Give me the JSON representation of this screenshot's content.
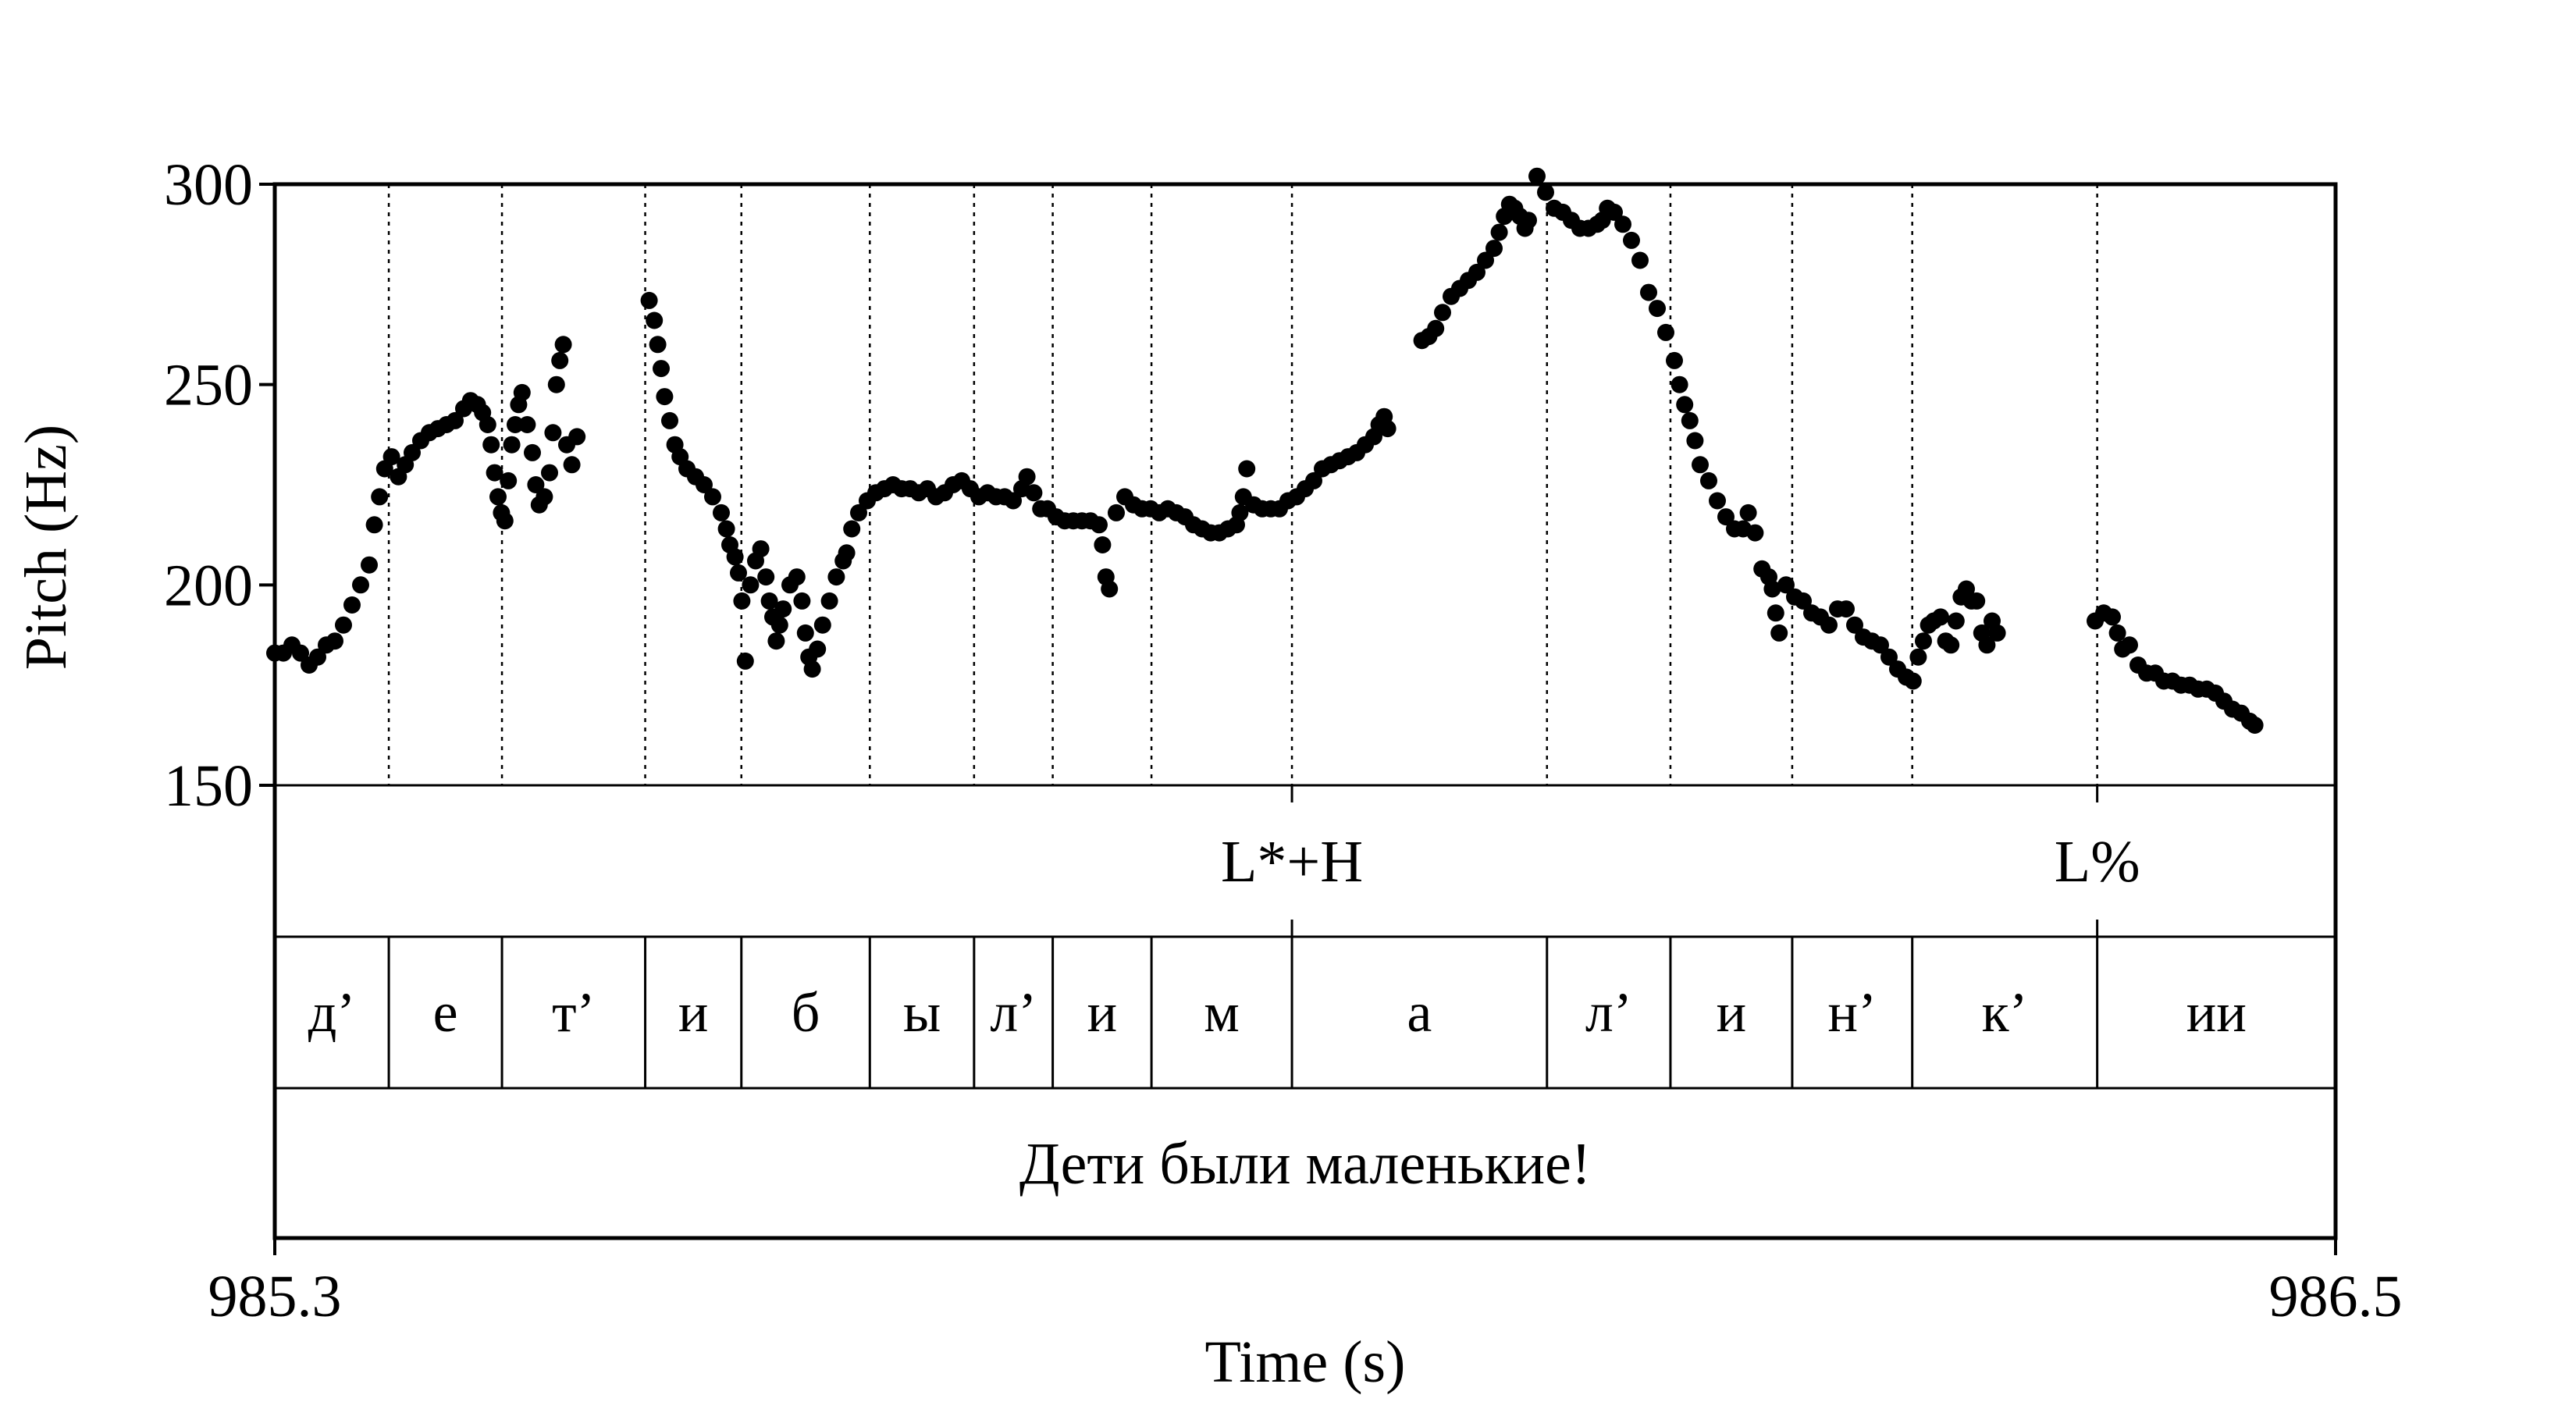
{
  "chart_data": {
    "type": "scatter",
    "xlabel": "Time (s)",
    "ylabel": "Pitch (Hz)",
    "xlim": [
      985.3,
      986.5
    ],
    "ylim": [
      150,
      300
    ],
    "x_tick_labels": [
      "985.3",
      "986.5"
    ],
    "y_ticks": [
      150,
      200,
      250,
      300
    ],
    "y_tick_labels": [
      "150",
      "200",
      "250",
      "300"
    ],
    "marker_color": "#000000",
    "grid": "dotted vertical lines at segment boundaries",
    "segment_boundaries": [
      985.3664,
      985.4323,
      985.5157,
      985.5717,
      985.6465,
      985.7072,
      985.753,
      985.8105,
      985.8923,
      986.0408,
      986.1127,
      986.1836,
      986.2535,
      986.3612
    ],
    "tone_tier": [
      {
        "time": 985.8923,
        "label": "L*+H"
      },
      {
        "time": 986.3612,
        "label": "L%"
      }
    ],
    "segment_tier": [
      {
        "start": 985.3,
        "end": 985.3664,
        "label": "д’"
      },
      {
        "start": 985.3664,
        "end": 985.4323,
        "label": "е"
      },
      {
        "start": 985.4323,
        "end": 985.5157,
        "label": "т’"
      },
      {
        "start": 985.5157,
        "end": 985.5717,
        "label": "и"
      },
      {
        "start": 985.5717,
        "end": 985.6465,
        "label": "б"
      },
      {
        "start": 985.6465,
        "end": 985.7072,
        "label": "ы"
      },
      {
        "start": 985.7072,
        "end": 985.753,
        "label": "л’"
      },
      {
        "start": 985.753,
        "end": 985.8105,
        "label": "и"
      },
      {
        "start": 985.8105,
        "end": 985.8923,
        "label": "м"
      },
      {
        "start": 985.8923,
        "end": 986.0408,
        "label": "а"
      },
      {
        "start": 986.0408,
        "end": 986.1127,
        "label": "л’"
      },
      {
        "start": 986.1127,
        "end": 986.1836,
        "label": "и"
      },
      {
        "start": 986.1836,
        "end": 986.2535,
        "label": "н’"
      },
      {
        "start": 986.2535,
        "end": 986.3612,
        "label": "к’"
      },
      {
        "start": 986.3612,
        "end": 986.5,
        "label": "ии"
      }
    ],
    "sentence_tier": [
      {
        "start": 985.3,
        "end": 986.5,
        "label": "Дети были маленькие!"
      }
    ],
    "pitch_track": [
      [
        985.3,
        183
      ],
      [
        985.305,
        183
      ],
      [
        985.31,
        185
      ],
      [
        985.315,
        183
      ],
      [
        985.32,
        180
      ],
      [
        985.325,
        182
      ],
      [
        985.33,
        185
      ],
      [
        985.335,
        186
      ],
      [
        985.34,
        190
      ],
      [
        985.345,
        195
      ],
      [
        985.35,
        200
      ],
      [
        985.355,
        205
      ],
      [
        985.358,
        215
      ],
      [
        985.361,
        222
      ],
      [
        985.364,
        229
      ],
      [
        985.368,
        232
      ],
      [
        985.372,
        227
      ],
      [
        985.376,
        230
      ],
      [
        985.38,
        233
      ],
      [
        985.385,
        236
      ],
      [
        985.39,
        238
      ],
      [
        985.395,
        239
      ],
      [
        985.4,
        240
      ],
      [
        985.405,
        241
      ],
      [
        985.41,
        244
      ],
      [
        985.414,
        246
      ],
      [
        985.418,
        245
      ],
      [
        985.421,
        243
      ],
      [
        985.424,
        240
      ],
      [
        985.426,
        235
      ],
      [
        985.428,
        228
      ],
      [
        985.43,
        222
      ],
      [
        985.432,
        218
      ],
      [
        985.434,
        216
      ],
      [
        985.436,
        226
      ],
      [
        985.438,
        235
      ],
      [
        985.44,
        240
      ],
      [
        985.442,
        245
      ],
      [
        985.444,
        248
      ],
      [
        985.447,
        240
      ],
      [
        985.45,
        233
      ],
      [
        985.452,
        225
      ],
      [
        985.454,
        220
      ],
      [
        985.457,
        222
      ],
      [
        985.46,
        228
      ],
      [
        985.462,
        238
      ],
      [
        985.464,
        250
      ],
      [
        985.466,
        256
      ],
      [
        985.468,
        260
      ],
      [
        985.47,
        235
      ],
      [
        985.473,
        230
      ],
      [
        985.476,
        237
      ],
      [
        985.518,
        271
      ],
      [
        985.521,
        266
      ],
      [
        985.523,
        260
      ],
      [
        985.525,
        254
      ],
      [
        985.527,
        247
      ],
      [
        985.53,
        241
      ],
      [
        985.533,
        235
      ],
      [
        985.536,
        232
      ],
      [
        985.54,
        229
      ],
      [
        985.545,
        227
      ],
      [
        985.55,
        225
      ],
      [
        985.555,
        222
      ],
      [
        985.56,
        218
      ],
      [
        985.563,
        214
      ],
      [
        985.565,
        210
      ],
      [
        985.568,
        207
      ],
      [
        985.57,
        203
      ],
      [
        985.572,
        196
      ],
      [
        985.574,
        181
      ],
      [
        985.577,
        200
      ],
      [
        985.58,
        206
      ],
      [
        985.583,
        209
      ],
      [
        985.586,
        202
      ],
      [
        985.588,
        196
      ],
      [
        985.59,
        192
      ],
      [
        985.592,
        186
      ],
      [
        985.594,
        190
      ],
      [
        985.596,
        194
      ],
      [
        985.6,
        200
      ],
      [
        985.604,
        202
      ],
      [
        985.607,
        196
      ],
      [
        985.609,
        188
      ],
      [
        985.611,
        182
      ],
      [
        985.613,
        179
      ],
      [
        985.616,
        184
      ],
      [
        985.619,
        190
      ],
      [
        985.623,
        196
      ],
      [
        985.627,
        202
      ],
      [
        985.631,
        206
      ],
      [
        985.633,
        208
      ],
      [
        985.636,
        214
      ],
      [
        985.64,
        218
      ],
      [
        985.645,
        221
      ],
      [
        985.65,
        223
      ],
      [
        985.655,
        224
      ],
      [
        985.66,
        225
      ],
      [
        985.665,
        224
      ],
      [
        985.67,
        224
      ],
      [
        985.675,
        223
      ],
      [
        985.68,
        224
      ],
      [
        985.685,
        222
      ],
      [
        985.69,
        223
      ],
      [
        985.695,
        225
      ],
      [
        985.7,
        226
      ],
      [
        985.705,
        224
      ],
      [
        985.71,
        222
      ],
      [
        985.715,
        223
      ],
      [
        985.72,
        222
      ],
      [
        985.725,
        222
      ],
      [
        985.73,
        221
      ],
      [
        985.735,
        224
      ],
      [
        985.738,
        227
      ],
      [
        985.742,
        223
      ],
      [
        985.746,
        219
      ],
      [
        985.75,
        219
      ],
      [
        985.755,
        217
      ],
      [
        985.76,
        216
      ],
      [
        985.765,
        216
      ],
      [
        985.77,
        216
      ],
      [
        985.775,
        216
      ],
      [
        985.78,
        215
      ],
      [
        985.782,
        210
      ],
      [
        985.784,
        202
      ],
      [
        985.786,
        199
      ],
      [
        985.79,
        218
      ],
      [
        985.795,
        222
      ],
      [
        985.8,
        220
      ],
      [
        985.805,
        219
      ],
      [
        985.81,
        219
      ],
      [
        985.815,
        218
      ],
      [
        985.82,
        219
      ],
      [
        985.825,
        218
      ],
      [
        985.83,
        217
      ],
      [
        985.835,
        215
      ],
      [
        985.84,
        214
      ],
      [
        985.845,
        213
      ],
      [
        985.85,
        213
      ],
      [
        985.855,
        214
      ],
      [
        985.86,
        215
      ],
      [
        985.862,
        218
      ],
      [
        985.864,
        222
      ],
      [
        985.866,
        229
      ],
      [
        985.87,
        220
      ],
      [
        985.875,
        219
      ],
      [
        985.88,
        219
      ],
      [
        985.885,
        219
      ],
      [
        985.89,
        221
      ],
      [
        985.895,
        222
      ],
      [
        985.9,
        224
      ],
      [
        985.905,
        226
      ],
      [
        985.91,
        229
      ],
      [
        985.915,
        230
      ],
      [
        985.92,
        231
      ],
      [
        985.925,
        232
      ],
      [
        985.93,
        233
      ],
      [
        985.935,
        235
      ],
      [
        985.94,
        237
      ],
      [
        985.943,
        240
      ],
      [
        985.946,
        242
      ],
      [
        985.948,
        239
      ],
      [
        985.968,
        261
      ],
      [
        985.972,
        262
      ],
      [
        985.976,
        264
      ],
      [
        985.98,
        268
      ],
      [
        985.985,
        272
      ],
      [
        985.99,
        274
      ],
      [
        985.995,
        276
      ],
      [
        986.0,
        278
      ],
      [
        986.005,
        281
      ],
      [
        986.01,
        284
      ],
      [
        986.013,
        288
      ],
      [
        986.016,
        292
      ],
      [
        986.019,
        295
      ],
      [
        986.022,
        294
      ],
      [
        986.025,
        292
      ],
      [
        986.028,
        289
      ],
      [
        986.03,
        291
      ],
      [
        986.035,
        302
      ],
      [
        986.04,
        298
      ],
      [
        986.045,
        294
      ],
      [
        986.05,
        293
      ],
      [
        986.055,
        291
      ],
      [
        986.06,
        289
      ],
      [
        986.065,
        289
      ],
      [
        986.07,
        290
      ],
      [
        986.073,
        291
      ],
      [
        986.076,
        294
      ],
      [
        986.08,
        293
      ],
      [
        986.085,
        290
      ],
      [
        986.09,
        286
      ],
      [
        986.095,
        281
      ],
      [
        986.1,
        273
      ],
      [
        986.105,
        269
      ],
      [
        986.11,
        263
      ],
      [
        986.115,
        256
      ],
      [
        986.118,
        250
      ],
      [
        986.121,
        245
      ],
      [
        986.124,
        241
      ],
      [
        986.127,
        236
      ],
      [
        986.13,
        230
      ],
      [
        986.135,
        226
      ],
      [
        986.14,
        221
      ],
      [
        986.145,
        217
      ],
      [
        986.15,
        214
      ],
      [
        986.155,
        214
      ],
      [
        986.158,
        218
      ],
      [
        986.162,
        213
      ],
      [
        986.166,
        204
      ],
      [
        986.17,
        202
      ],
      [
        986.172,
        199
      ],
      [
        986.174,
        193
      ],
      [
        986.176,
        188
      ],
      [
        986.18,
        200
      ],
      [
        986.185,
        197
      ],
      [
        986.19,
        196
      ],
      [
        986.195,
        193
      ],
      [
        986.2,
        192
      ],
      [
        986.205,
        190
      ],
      [
        986.21,
        194
      ],
      [
        986.215,
        194
      ],
      [
        986.22,
        190
      ],
      [
        986.225,
        187
      ],
      [
        986.23,
        186
      ],
      [
        986.235,
        185
      ],
      [
        986.24,
        182
      ],
      [
        986.245,
        179
      ],
      [
        986.25,
        177
      ],
      [
        986.254,
        176
      ],
      [
        986.257,
        182
      ],
      [
        986.26,
        186
      ],
      [
        986.263,
        190
      ],
      [
        986.266,
        191
      ],
      [
        986.27,
        192
      ],
      [
        986.273,
        186
      ],
      [
        986.276,
        185
      ],
      [
        986.279,
        191
      ],
      [
        986.282,
        197
      ],
      [
        986.285,
        199
      ],
      [
        986.288,
        196
      ],
      [
        986.291,
        196
      ],
      [
        986.294,
        188
      ],
      [
        986.297,
        185
      ],
      [
        986.3,
        191
      ],
      [
        986.303,
        188
      ],
      [
        986.36,
        191
      ],
      [
        986.365,
        193
      ],
      [
        986.37,
        192
      ],
      [
        986.373,
        188
      ],
      [
        986.376,
        184
      ],
      [
        986.38,
        185
      ],
      [
        986.385,
        180
      ],
      [
        986.39,
        178
      ],
      [
        986.395,
        178
      ],
      [
        986.4,
        176
      ],
      [
        986.405,
        176
      ],
      [
        986.41,
        175
      ],
      [
        986.415,
        175
      ],
      [
        986.42,
        174
      ],
      [
        986.425,
        174
      ],
      [
        986.43,
        173
      ],
      [
        986.435,
        171
      ],
      [
        986.44,
        169
      ],
      [
        986.445,
        168
      ],
      [
        986.45,
        166
      ],
      [
        986.453,
        165
      ]
    ]
  }
}
